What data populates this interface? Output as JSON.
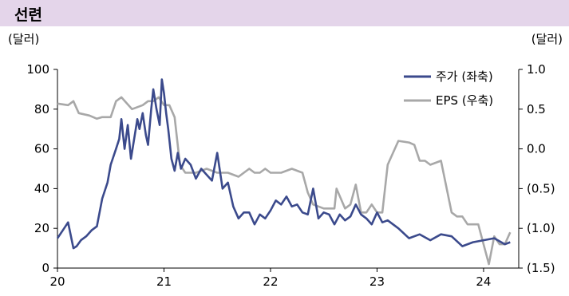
{
  "header": {
    "title": "선련"
  },
  "units": {
    "left": "(달러)",
    "right": "(달러)"
  },
  "chart_data": {
    "type": "line",
    "title": "선련",
    "x_ticks": [
      "20",
      "21",
      "22",
      "23",
      "24"
    ],
    "y_left_ticks": [
      "100",
      "80",
      "60",
      "40",
      "20",
      "0"
    ],
    "y_right_ticks": [
      "1.0",
      "0.5",
      "0.0",
      "(0.5)",
      "(1.0)",
      "(1.5)"
    ],
    "ylim_left": [
      0,
      100
    ],
    "ylim_right": [
      -1.5,
      1.0
    ],
    "xlim": [
      2020.0,
      2024.33
    ],
    "legend_position": "top-right",
    "series": [
      {
        "name": "주가 (좌축)",
        "axis": "left",
        "color": "#3b4a8c",
        "x": [
          2020.0,
          2020.05,
          2020.1,
          2020.15,
          2020.18,
          2020.22,
          2020.27,
          2020.32,
          2020.37,
          2020.42,
          2020.47,
          2020.5,
          2020.55,
          2020.58,
          2020.6,
          2020.63,
          2020.66,
          2020.69,
          2020.72,
          2020.75,
          2020.77,
          2020.8,
          2020.83,
          2020.85,
          2020.88,
          2020.9,
          2020.93,
          2020.96,
          2020.98,
          2021.0,
          2021.02,
          2021.04,
          2021.07,
          2021.1,
          2021.13,
          2021.16,
          2021.2,
          2021.25,
          2021.3,
          2021.35,
          2021.4,
          2021.45,
          2021.5,
          2021.55,
          2021.6,
          2021.65,
          2021.7,
          2021.75,
          2021.8,
          2021.85,
          2021.9,
          2021.95,
          2022.0,
          2022.05,
          2022.1,
          2022.15,
          2022.2,
          2022.25,
          2022.3,
          2022.35,
          2022.4,
          2022.45,
          2022.5,
          2022.55,
          2022.6,
          2022.65,
          2022.7,
          2022.75,
          2022.8,
          2022.85,
          2022.9,
          2022.95,
          2023.0,
          2023.05,
          2023.1,
          2023.15,
          2023.2,
          2023.3,
          2023.4,
          2023.5,
          2023.6,
          2023.7,
          2023.8,
          2023.9,
          2024.0,
          2024.1,
          2024.2,
          2024.25
        ],
        "values": [
          15,
          19,
          23,
          10,
          11,
          14,
          16,
          19,
          21,
          35,
          43,
          52,
          60,
          65,
          75,
          60,
          72,
          55,
          65,
          75,
          70,
          78,
          67,
          62,
          80,
          90,
          80,
          72,
          95,
          88,
          78,
          70,
          55,
          49,
          58,
          50,
          55,
          52,
          45,
          50,
          47,
          44,
          58,
          40,
          43,
          31,
          25,
          28,
          28,
          22,
          27,
          25,
          29,
          34,
          32,
          36,
          31,
          32,
          28,
          27,
          40,
          25,
          28,
          27,
          22,
          27,
          24,
          26,
          32,
          27,
          25,
          22,
          28,
          23,
          24,
          22,
          20,
          15,
          17,
          14,
          17,
          16,
          11,
          13,
          14,
          15,
          12,
          13
        ]
      },
      {
        "name": "EPS (우축)",
        "axis": "right",
        "color": "#a8a8a8",
        "x": [
          2020.0,
          2020.1,
          2020.15,
          2020.2,
          2020.3,
          2020.37,
          2020.42,
          2020.5,
          2020.55,
          2020.6,
          2020.7,
          2020.8,
          2020.85,
          2020.9,
          2020.95,
          2021.0,
          2021.05,
          2021.1,
          2021.15,
          2021.2,
          2021.3,
          2021.4,
          2021.5,
          2021.6,
          2021.7,
          2021.8,
          2021.85,
          2021.9,
          2021.95,
          2022.0,
          2022.1,
          2022.2,
          2022.3,
          2022.35,
          2022.4,
          2022.5,
          2022.6,
          2022.62,
          2022.7,
          2022.75,
          2022.8,
          2022.85,
          2022.9,
          2022.95,
          2023.0,
          2023.05,
          2023.1,
          2023.2,
          2023.3,
          2023.35,
          2023.4,
          2023.45,
          2023.5,
          2023.6,
          2023.7,
          2023.75,
          2023.8,
          2023.85,
          2023.9,
          2023.95,
          2024.0,
          2024.05,
          2024.1,
          2024.15,
          2024.2,
          2024.25
        ],
        "values": [
          0.57,
          0.55,
          0.6,
          0.45,
          0.42,
          0.38,
          0.4,
          0.4,
          0.6,
          0.65,
          0.5,
          0.55,
          0.6,
          0.6,
          0.65,
          0.55,
          0.55,
          0.4,
          -0.2,
          -0.3,
          -0.3,
          -0.25,
          -0.3,
          -0.3,
          -0.35,
          -0.25,
          -0.3,
          -0.3,
          -0.25,
          -0.3,
          -0.3,
          -0.25,
          -0.3,
          -0.55,
          -0.7,
          -0.75,
          -0.75,
          -0.5,
          -0.75,
          -0.7,
          -0.45,
          -0.8,
          -0.8,
          -0.7,
          -0.8,
          -0.8,
          -0.2,
          0.1,
          0.08,
          0.05,
          -0.15,
          -0.15,
          -0.2,
          -0.15,
          -0.8,
          -0.85,
          -0.85,
          -0.95,
          -0.95,
          -0.95,
          -1.2,
          -1.45,
          -1.1,
          -1.2,
          -1.2,
          -1.05
        ]
      }
    ]
  }
}
